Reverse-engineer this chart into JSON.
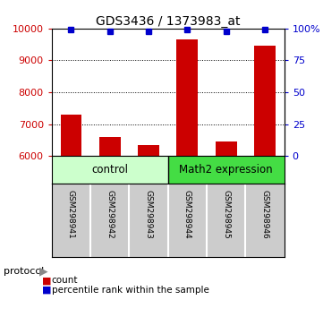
{
  "title": "GDS3436 / 1373983_at",
  "samples": [
    "GSM298941",
    "GSM298942",
    "GSM298943",
    "GSM298944",
    "GSM298945",
    "GSM298946"
  ],
  "counts": [
    7300,
    6600,
    6350,
    9650,
    6470,
    9450
  ],
  "percentiles": [
    99,
    98,
    98,
    99,
    98,
    99
  ],
  "ylim_left": [
    6000,
    10000
  ],
  "yticks_left": [
    6000,
    7000,
    8000,
    9000,
    10000
  ],
  "ylim_right": [
    0,
    100
  ],
  "yticks_right": [
    0,
    25,
    50,
    75,
    100
  ],
  "bar_color": "#cc0000",
  "dot_color": "#0000cc",
  "group_label_box_color_control": "#ccffcc",
  "group_label_box_color_math2": "#44dd44",
  "sample_box_color": "#cccccc",
  "left_axis_color": "#cc0000",
  "right_axis_color": "#0000cc",
  "legend_items": [
    "count",
    "percentile rank within the sample"
  ],
  "background_color": "#ffffff"
}
